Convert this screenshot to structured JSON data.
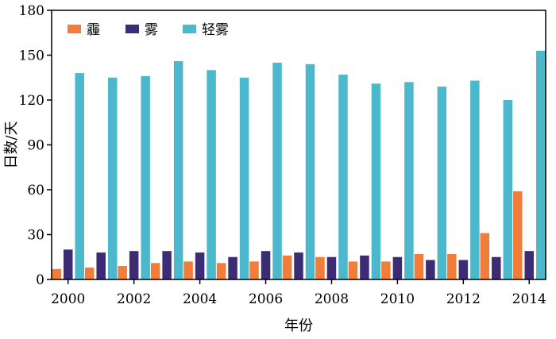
{
  "chart_data": {
    "type": "bar",
    "title": "",
    "xlabel": "年份",
    "ylabel": "日数/天",
    "ylim": [
      0,
      180
    ],
    "yticks": [
      "0",
      "30",
      "60",
      "90",
      "120",
      "150",
      "180"
    ],
    "xtick_labels": [
      "2000",
      "2002",
      "2004",
      "2006",
      "2008",
      "2010",
      "2012",
      "2014"
    ],
    "categories": [
      "2000",
      "2001",
      "2002",
      "2003",
      "2004",
      "2005",
      "2006",
      "2007",
      "2008",
      "2009",
      "2010",
      "2011",
      "2012",
      "2013",
      "2014"
    ],
    "legend_position": "top-left",
    "grid": false,
    "series": [
      {
        "name": "霾",
        "color": "#f07d3a",
        "values": [
          7,
          8,
          9,
          11,
          12,
          11,
          12,
          16,
          15,
          12,
          12,
          17,
          17,
          31,
          59
        ]
      },
      {
        "name": "雾",
        "color": "#3d2b74",
        "values": [
          20,
          18,
          19,
          19,
          18,
          15,
          19,
          18,
          15,
          16,
          15,
          13,
          13,
          15,
          19
        ]
      },
      {
        "name": "轻雾",
        "color": "#4bb8cc",
        "values": [
          138,
          135,
          136,
          146,
          140,
          135,
          145,
          144,
          137,
          131,
          132,
          129,
          133,
          120,
          153
        ]
      }
    ]
  }
}
